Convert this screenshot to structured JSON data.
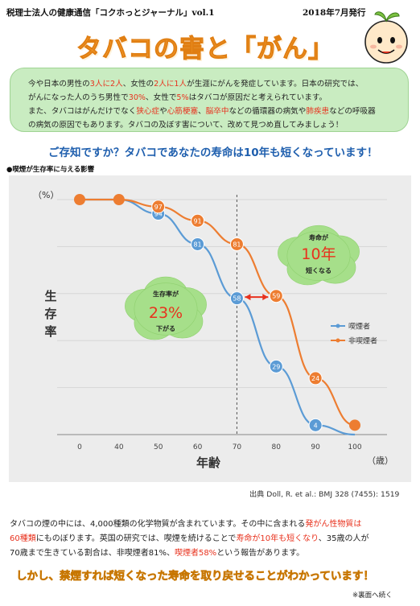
{
  "header": {
    "newsletter": "税理士法人の健康通信「コクホっとジャーナル」vol.1",
    "date": "2018年7月発行"
  },
  "title": "タバコの害と「がん」",
  "intro": {
    "line1": [
      "今や日本の男性の",
      "3人に2人",
      "、女性の",
      "2人に1人",
      "が生涯にがんを発症しています。日本の研究では、"
    ],
    "line2": [
      "がんになった人のうち男性で",
      "30%",
      "、女性で",
      "5%",
      "はタバコが原因だと考えられています。"
    ],
    "line3": [
      "また、タバコはがんだけでなく",
      "狭心症",
      "や",
      "心筋梗塞",
      "、",
      "脳卒中",
      "などの循環器の病気や",
      "肺疾患",
      "などの呼吸器"
    ],
    "line4": "の病気の原因でもあります。タバコの及ぼす害について、改めて見つめ直してみましょう！"
  },
  "question_title": "ご存知ですか？タバコであなたの寿命は10年も短くなっています！",
  "chart_caption": "●喫煙が生存率に与える影響",
  "chart_data": {
    "type": "line",
    "x": [
      0,
      40,
      50,
      60,
      70,
      80,
      90,
      100
    ],
    "xlabel": "年齢",
    "xunit": "（歳）",
    "ylabel": "生存率",
    "yunit": "（%）",
    "ylim": [
      0,
      100
    ],
    "grid": "horizontal",
    "legend_position": "right",
    "series": [
      {
        "name": "喫煙者",
        "color": "#5b9bd5",
        "points": [
          [
            0,
            100
          ],
          [
            40,
            100
          ],
          [
            50,
            94
          ],
          [
            60,
            81
          ],
          [
            70,
            58
          ],
          [
            80,
            29
          ],
          [
            90,
            4
          ],
          [
            100,
            0
          ]
        ],
        "labels": [
          "",
          "",
          "94",
          "81",
          "58",
          "29",
          "4",
          ""
        ]
      },
      {
        "name": "非喫煙者",
        "color": "#ed7d31",
        "points": [
          [
            0,
            100
          ],
          [
            40,
            100
          ],
          [
            50,
            97
          ],
          [
            60,
            91
          ],
          [
            70,
            81
          ],
          [
            80,
            59
          ],
          [
            90,
            24
          ],
          [
            100,
            4
          ]
        ],
        "labels": [
          "",
          "",
          "97",
          "91",
          "81",
          "59",
          "24",
          ""
        ]
      }
    ],
    "annotations": {
      "right_bubble": {
        "top": "寿命が",
        "big": "10年",
        "bottom": "短くなる"
      },
      "left_bubble": {
        "top": "生存率が",
        "big": "23%",
        "bottom": "下がる"
      }
    }
  },
  "source": "出典 Doll, R. et al.: BMJ 328 (7455): 1519",
  "body": {
    "line1": [
      "タバコの煙の中には、4,000種類の化学物質が含まれています。その中に含まれる",
      "発がん性物質は"
    ],
    "line2": [
      "60種類",
      "にものぼります。英国の研究では、喫煙を続けることで",
      "寿命が10年も短くなり",
      "、35歳の人が"
    ],
    "line3": [
      "70歳まで生きている割合は、非喫煙者81%、",
      "喫煙者58%",
      "という報告があります。"
    ]
  },
  "bottom_banner": "しかし、禁煙すれば短くなった寿命を取り戻せることがわかっています！",
  "back_note": "※裏面へ続く",
  "colors": {
    "accent_orange": "#f7a335",
    "red": "#e8321e",
    "blue_heading": "#1f5fae",
    "intro_bg": "#c9ecc1"
  }
}
